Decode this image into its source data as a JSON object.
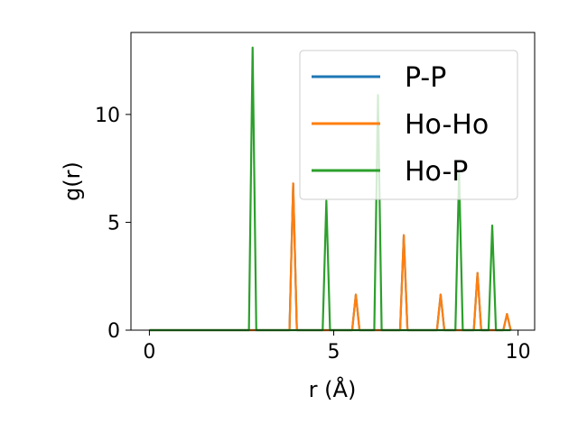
{
  "chart_data": {
    "type": "line",
    "xlabel": "r (Å)",
    "ylabel": "g(r)",
    "xlim": [
      -0.5,
      10.45
    ],
    "ylim": [
      0,
      13.8
    ],
    "xticks": [
      0,
      5,
      10
    ],
    "yticks": [
      0,
      5,
      10
    ],
    "grid": false,
    "legend_position": "top-right",
    "series": [
      {
        "name": "P-P",
        "color": "#1f77b4",
        "x": [
          0,
          3.8,
          3.9,
          4.0,
          5.5,
          5.6,
          5.7,
          6.8,
          6.9,
          7.0,
          7.8,
          7.9,
          8.0,
          8.8,
          8.9,
          9.0,
          9.6,
          9.7,
          9.8
        ],
        "y": [
          0,
          0,
          6.8,
          0,
          0,
          1.65,
          0,
          0,
          4.4,
          0,
          0,
          1.65,
          0,
          0,
          2.65,
          0,
          0,
          0.75,
          0
        ]
      },
      {
        "name": "Ho-Ho",
        "color": "#ff7f0e",
        "x": [
          0,
          3.8,
          3.9,
          4.0,
          5.5,
          5.6,
          5.7,
          6.8,
          6.9,
          7.0,
          7.8,
          7.9,
          8.0,
          8.8,
          8.9,
          9.0,
          9.6,
          9.7,
          9.8
        ],
        "y": [
          0,
          0,
          6.8,
          0,
          0,
          1.65,
          0,
          0,
          4.4,
          0,
          0,
          1.65,
          0,
          0,
          2.65,
          0,
          0,
          0.75,
          0
        ]
      },
      {
        "name": "Ho-P",
        "color": "#2ca02c",
        "x": [
          0,
          2.7,
          2.8,
          2.9,
          4.7,
          4.8,
          4.9,
          6.1,
          6.2,
          6.3,
          8.3,
          8.4,
          8.5,
          9.2,
          9.3,
          9.4,
          9.8
        ],
        "y": [
          0,
          0,
          13.1,
          0,
          0,
          6.0,
          0,
          0,
          10.9,
          0,
          0,
          7.3,
          0,
          0,
          4.85,
          0,
          0
        ]
      }
    ]
  }
}
